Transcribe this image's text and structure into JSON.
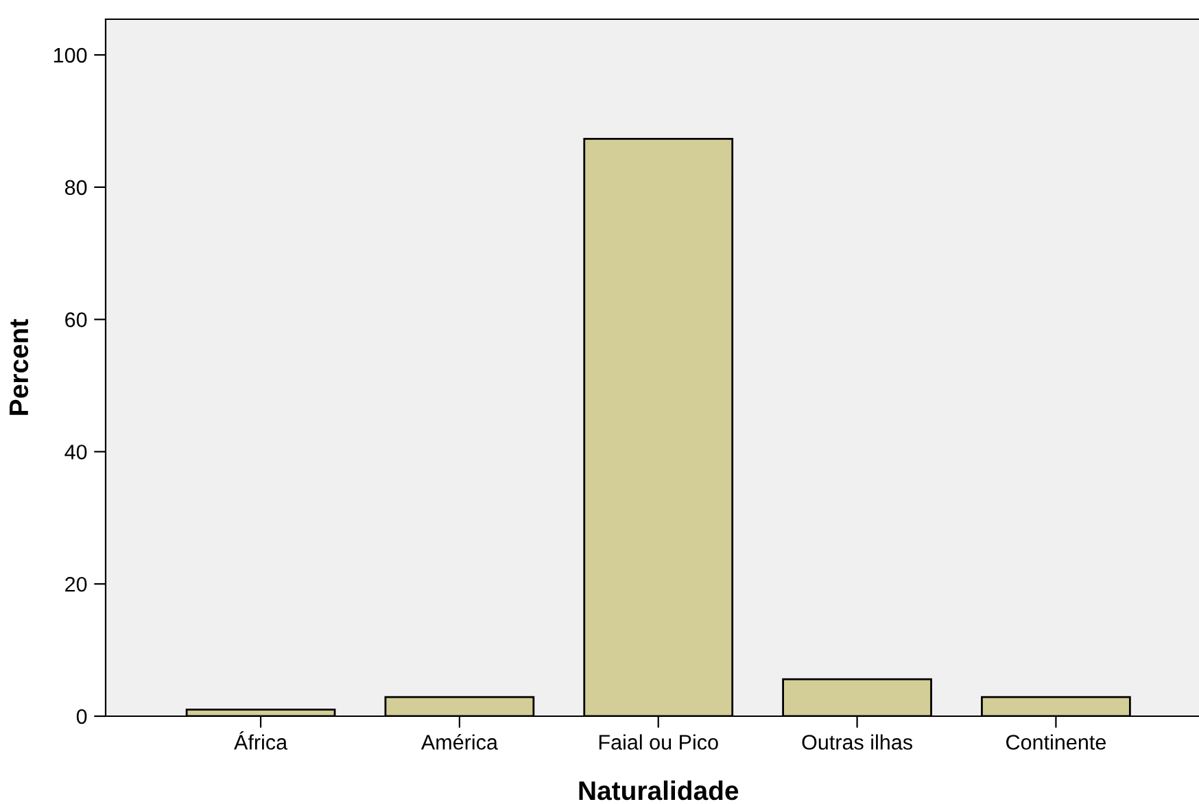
{
  "chart_data": {
    "type": "bar",
    "xlabel": "Naturalidade",
    "ylabel": "Percent",
    "categories": [
      "África",
      "América",
      "Faial ou Pico",
      "Outras ilhas",
      "Continente"
    ],
    "values": [
      1.0,
      2.9,
      87.3,
      5.6,
      2.9
    ],
    "color": "#d3ce97",
    "ylim": [
      0,
      105.4
    ],
    "yticks": [
      0,
      20,
      40,
      60,
      80,
      100
    ],
    "grid": false
  }
}
